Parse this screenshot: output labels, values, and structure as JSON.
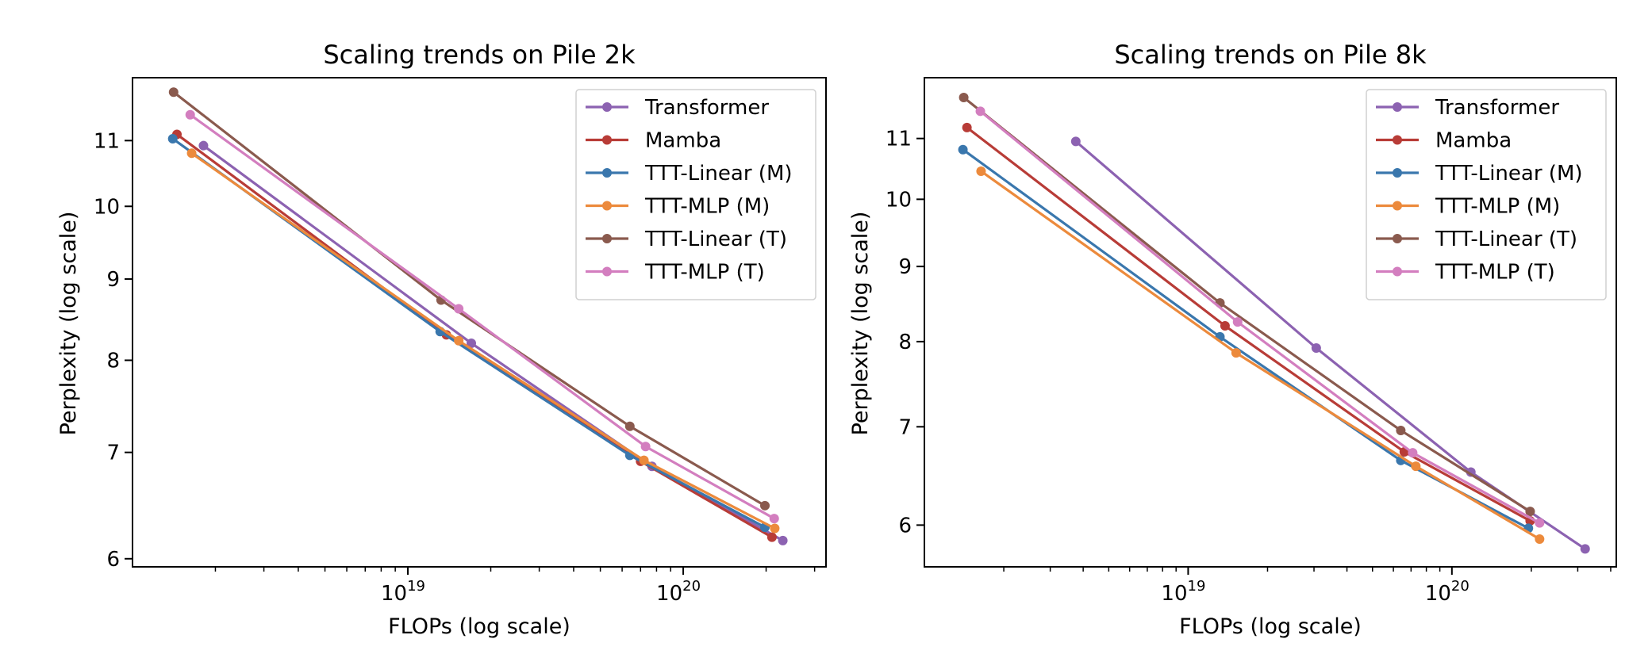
{
  "chart_data": [
    {
      "type": "line",
      "title": "Scaling trends on Pile 2k",
      "xlabel": "FLOPs (log scale)",
      "ylabel": "Perplexity (log scale)",
      "xscale": "log",
      "yscale": "log",
      "xlim": [
        1e+18,
        3.3e+20
      ],
      "ylim": [
        5.93,
        12.05
      ],
      "xticks": [
        {
          "value": 1e+19,
          "base": "10",
          "exp": "19"
        },
        {
          "value": 1e+20,
          "base": "10",
          "exp": "20"
        }
      ],
      "yticks": [
        {
          "value": 6,
          "label": "6"
        },
        {
          "value": 7,
          "label": "7"
        },
        {
          "value": 8,
          "label": "8"
        },
        {
          "value": 9,
          "label": "9"
        },
        {
          "value": 10,
          "label": "10"
        },
        {
          "value": 11,
          "label": "11"
        }
      ],
      "legend_position": "top-right",
      "grid": false,
      "series": [
        {
          "name": "Transformer",
          "color": "#8c62b1",
          "points": [
            [
              1.81e+18,
              10.92
            ],
            [
              1.7e+19,
              8.2
            ],
            [
              7.7e+19,
              6.86
            ],
            [
              2.3e+20,
              6.16
            ]
          ]
        },
        {
          "name": "Mamba",
          "color": "#b83c37",
          "points": [
            [
              1.45e+18,
              11.1
            ],
            [
              1.38e+19,
              8.3
            ],
            [
              7e+19,
              6.91
            ],
            [
              2.1e+20,
              6.19
            ]
          ]
        },
        {
          "name": "TTT-Linear (M)",
          "color": "#3a77ad",
          "points": [
            [
              1.4e+18,
              11.03
            ],
            [
              1.31e+19,
              8.34
            ],
            [
              6.4e+19,
              6.97
            ],
            [
              1.98e+20,
              6.28
            ]
          ]
        },
        {
          "name": "TTT-MLP (M)",
          "color": "#ec8a3c",
          "points": [
            [
              1.64e+18,
              10.8
            ],
            [
              1.53e+19,
              8.23
            ],
            [
              7.2e+19,
              6.92
            ],
            [
              2.15e+20,
              6.27
            ]
          ]
        },
        {
          "name": "TTT-Linear (T)",
          "color": "#8a5a4e",
          "points": [
            [
              1.41e+18,
              11.8
            ],
            [
              1.32e+19,
              8.73
            ],
            [
              6.4e+19,
              7.27
            ],
            [
              1.98e+20,
              6.48
            ]
          ]
        },
        {
          "name": "TTT-MLP (T)",
          "color": "#d37ebf",
          "points": [
            [
              1.62e+18,
              11.42
            ],
            [
              1.53e+19,
              8.62
            ],
            [
              7.3e+19,
              7.06
            ],
            [
              2.14e+20,
              6.36
            ]
          ]
        }
      ]
    },
    {
      "type": "line",
      "title": "Scaling trends on Pile 8k",
      "xlabel": "FLOPs (log scale)",
      "ylabel": "Perplexity (log scale)",
      "xscale": "log",
      "yscale": "log",
      "xlim": [
        1e+18,
        4.2e+20
      ],
      "ylim": [
        5.62,
        12.1
      ],
      "xticks": [
        {
          "value": 1e+19,
          "base": "10",
          "exp": "19"
        },
        {
          "value": 1e+20,
          "base": "10",
          "exp": "20"
        }
      ],
      "yticks": [
        {
          "value": 6,
          "label": "6"
        },
        {
          "value": 7,
          "label": "7"
        },
        {
          "value": 8,
          "label": "8"
        },
        {
          "value": 9,
          "label": "9"
        },
        {
          "value": 10,
          "label": "10"
        },
        {
          "value": 11,
          "label": "11"
        }
      ],
      "legend_position": "top-right",
      "grid": false,
      "series": [
        {
          "name": "Transformer",
          "color": "#8c62b1",
          "points": [
            [
              3.75e+18,
              10.95
            ],
            [
              3.06e+19,
              7.92
            ],
            [
              1.18e+20,
              6.52
            ],
            [
              3.2e+20,
              5.78
            ]
          ]
        },
        {
          "name": "Mamba",
          "color": "#b83c37",
          "points": [
            [
              1.45e+18,
              11.19
            ],
            [
              1.38e+19,
              8.2
            ],
            [
              6.6e+19,
              6.73
            ],
            [
              1.98e+20,
              6.04
            ]
          ]
        },
        {
          "name": "TTT-Linear (M)",
          "color": "#3a77ad",
          "points": [
            [
              1.4e+18,
              10.81
            ],
            [
              1.32e+19,
              8.06
            ],
            [
              6.4e+19,
              6.64
            ],
            [
              1.95e+20,
              5.97
            ]
          ]
        },
        {
          "name": "TTT-MLP (M)",
          "color": "#ec8a3c",
          "points": [
            [
              1.64e+18,
              10.45
            ],
            [
              1.52e+19,
              7.86
            ],
            [
              7.3e+19,
              6.58
            ],
            [
              2.15e+20,
              5.87
            ]
          ]
        },
        {
          "name": "TTT-Linear (T)",
          "color": "#8a5a4e",
          "points": [
            [
              1.41e+18,
              11.73
            ],
            [
              1.32e+19,
              8.5
            ],
            [
              6.4e+19,
              6.96
            ],
            [
              1.98e+20,
              6.13
            ]
          ]
        },
        {
          "name": "TTT-MLP (T)",
          "color": "#d37ebf",
          "points": [
            [
              1.63e+18,
              11.48
            ],
            [
              1.54e+19,
              8.25
            ],
            [
              7.1e+19,
              6.72
            ],
            [
              2.15e+20,
              6.02
            ]
          ]
        }
      ]
    }
  ]
}
